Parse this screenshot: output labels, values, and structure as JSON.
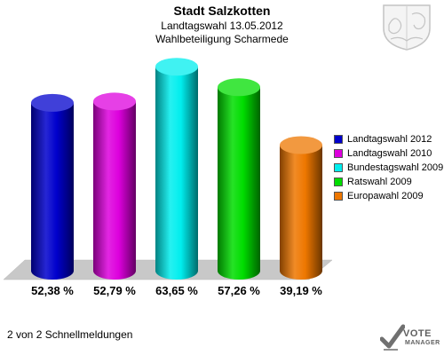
{
  "header": {
    "title": "Stadt Salzkotten",
    "subtitle1": "Landtagswahl 13.05.2012",
    "subtitle2": "Wahlbeteiligung Scharmede"
  },
  "footer": {
    "text": "2 von 2 Schnellmeldungen"
  },
  "logo": {
    "line1": "VOTE",
    "line2": "MANAGER"
  },
  "chart_data": {
    "type": "bar",
    "unit": "%",
    "categories": [
      "Landtagswahl 2012",
      "Landtagswahl 2010",
      "Bundestagswahl 2009",
      "Ratswahl 2009",
      "Europawahl 2009"
    ],
    "values": [
      52.38,
      52.79,
      63.65,
      57.26,
      39.19
    ],
    "value_labels": [
      "52,38 %",
      "52,79 %",
      "63,65 %",
      "57,26 %",
      "39,19 %"
    ],
    "colors": [
      "#0000cc",
      "#dd00dd",
      "#00eeee",
      "#00dd00",
      "#ee7700"
    ],
    "legend": [
      "Landtagswahl 2012",
      "Landtagswahl 2010",
      "Bundestagswahl 2009",
      "Ratswahl 2009",
      "Europawahl 2009"
    ],
    "legend_position": "right",
    "ylim": [
      0,
      70
    ],
    "grid": false,
    "style": "3d-cylinder"
  }
}
